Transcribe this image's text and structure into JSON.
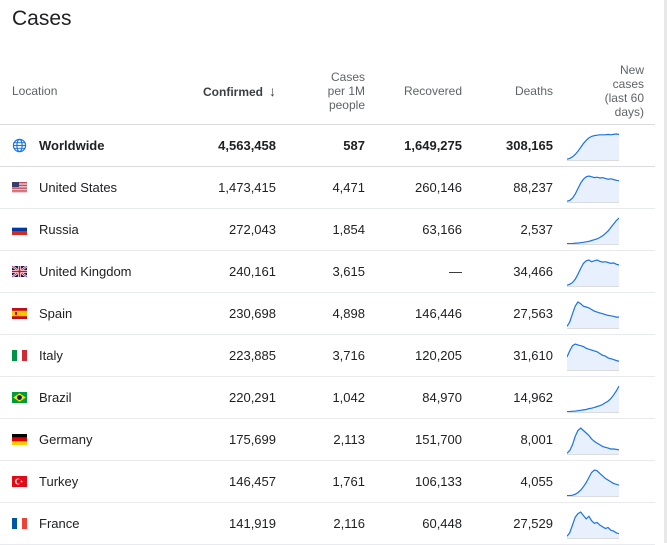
{
  "title": "Cases",
  "headers": {
    "location": "Location",
    "confirmed": "Confirmed",
    "cases_per_1m": [
      "Cases",
      "per 1M",
      "people"
    ],
    "recovered": "Recovered",
    "deaths": "Deaths",
    "new_cases": [
      "New",
      "cases",
      "(last 60",
      "days)"
    ]
  },
  "rows": [
    {
      "location": "Worldwide",
      "flag": "globe-icon",
      "confirmed": "4,563,458",
      "per_1m": "587",
      "recovered": "1,649,275",
      "deaths": "308,165",
      "trend": [
        2,
        4,
        8,
        14,
        22,
        32,
        42,
        50,
        56,
        60,
        62,
        63,
        64,
        64,
        64,
        65,
        64,
        65,
        66,
        65
      ]
    },
    {
      "location": "United States",
      "flag": "us-flag-icon",
      "confirmed": "1,473,415",
      "per_1m": "4,471",
      "recovered": "260,146",
      "deaths": "88,237",
      "trend": [
        2,
        4,
        10,
        20,
        34,
        48,
        58,
        64,
        66,
        64,
        62,
        63,
        61,
        62,
        60,
        58,
        59,
        57,
        55,
        54
      ]
    },
    {
      "location": "Russia",
      "flag": "ru-flag-icon",
      "confirmed": "272,043",
      "per_1m": "1,854",
      "recovered": "63,166",
      "deaths": "2,537",
      "trend": [
        1,
        1,
        1,
        2,
        2,
        3,
        4,
        5,
        6,
        8,
        10,
        12,
        15,
        19,
        24,
        30,
        38,
        46,
        54,
        60
      ]
    },
    {
      "location": "United Kingdom",
      "flag": "uk-flag-icon",
      "confirmed": "240,161",
      "per_1m": "3,615",
      "recovered": "—",
      "deaths": "34,466",
      "trend": [
        2,
        4,
        8,
        16,
        28,
        42,
        54,
        60,
        62,
        58,
        60,
        62,
        59,
        57,
        58,
        56,
        54,
        55,
        52,
        50
      ]
    },
    {
      "location": "Spain",
      "flag": "es-flag-icon",
      "confirmed": "230,698",
      "per_1m": "4,898",
      "recovered": "146,446",
      "deaths": "27,563",
      "trend": [
        4,
        14,
        34,
        52,
        62,
        58,
        52,
        50,
        48,
        44,
        40,
        38,
        36,
        34,
        32,
        30,
        29,
        28,
        26,
        26
      ]
    },
    {
      "location": "Italy",
      "flag": "it-flag-icon",
      "confirmed": "223,885",
      "per_1m": "3,716",
      "recovered": "120,205",
      "deaths": "31,610",
      "trend": [
        30,
        44,
        56,
        60,
        58,
        56,
        54,
        50,
        48,
        46,
        44,
        42,
        38,
        34,
        32,
        28,
        26,
        24,
        22,
        20
      ]
    },
    {
      "location": "Brazil",
      "flag": "br-flag-icon",
      "confirmed": "220,291",
      "per_1m": "1,042",
      "recovered": "84,970",
      "deaths": "14,962",
      "trend": [
        1,
        1,
        2,
        2,
        3,
        4,
        5,
        6,
        8,
        9,
        11,
        13,
        15,
        18,
        22,
        26,
        32,
        40,
        50,
        62
      ]
    },
    {
      "location": "Germany",
      "flag": "de-flag-icon",
      "confirmed": "175,699",
      "per_1m": "2,113",
      "recovered": "151,700",
      "deaths": "8,001",
      "trend": [
        2,
        8,
        22,
        42,
        56,
        62,
        56,
        50,
        44,
        36,
        30,
        26,
        22,
        18,
        16,
        14,
        12,
        12,
        11,
        10
      ]
    },
    {
      "location": "Turkey",
      "flag": "tr-flag-icon",
      "confirmed": "146,457",
      "per_1m": "1,761",
      "recovered": "106,133",
      "deaths": "4,055",
      "trend": [
        1,
        1,
        2,
        4,
        8,
        14,
        22,
        32,
        44,
        56,
        62,
        60,
        54,
        48,
        42,
        38,
        34,
        30,
        28,
        26
      ]
    },
    {
      "location": "France",
      "flag": "fr-flag-icon",
      "confirmed": "141,919",
      "per_1m": "2,116",
      "recovered": "60,448",
      "deaths": "27,529",
      "trend": [
        4,
        12,
        30,
        48,
        56,
        60,
        52,
        44,
        50,
        40,
        34,
        36,
        30,
        26,
        22,
        24,
        18,
        16,
        12,
        10
      ]
    }
  ],
  "colors": {
    "spark_line": "#1a73e8",
    "spark_fill": "#e8f0fe",
    "spark_base": "#dadce0"
  }
}
